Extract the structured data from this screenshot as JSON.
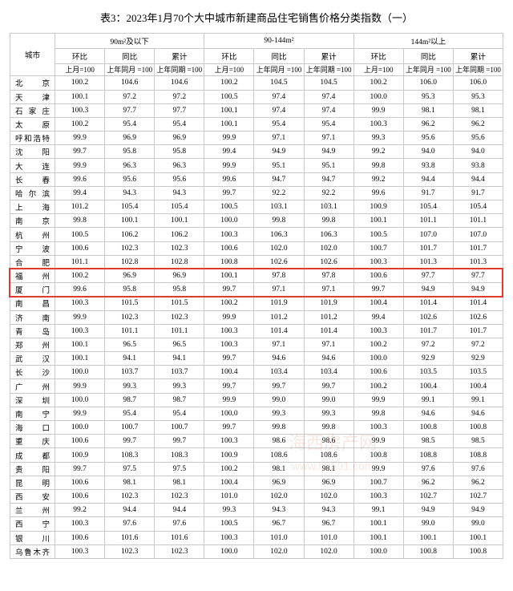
{
  "title": "表3：2023年1月70个大中城市新建商品住宅销售价格分类指数（一）",
  "header": {
    "city": "城市",
    "group1": "90m²及以下",
    "group2": "90-144m²",
    "group3": "144m²以上",
    "hb": "环比",
    "tb": "同比",
    "lj": "累计",
    "sub_hb": "上月=100",
    "sub_tb": "上年同月\n=100",
    "sub_lj": "上年同期\n=100"
  },
  "highlight_rows": [
    15,
    16
  ],
  "highlight_color": "#e23b2e",
  "watermark": {
    "line1": "海西房产网",
    "line2": "www.h0591.com"
  },
  "cities": [
    {
      "n": "北  京",
      "v": [
        "100.2",
        "104.6",
        "104.6",
        "100.2",
        "104.5",
        "104.5",
        "100.2",
        "106.0",
        "106.0"
      ]
    },
    {
      "n": "天  津",
      "v": [
        "100.1",
        "97.2",
        "97.2",
        "100.5",
        "97.4",
        "97.4",
        "100.0",
        "95.3",
        "95.3"
      ]
    },
    {
      "n": "石家庄",
      "v": [
        "100.3",
        "97.7",
        "97.7",
        "100.1",
        "97.4",
        "97.4",
        "99.9",
        "98.1",
        "98.1"
      ]
    },
    {
      "n": "太  原",
      "v": [
        "100.2",
        "95.4",
        "95.4",
        "100.1",
        "95.4",
        "95.4",
        "100.3",
        "96.2",
        "96.2"
      ]
    },
    {
      "n": "呼和浩特",
      "v": [
        "99.9",
        "96.9",
        "96.9",
        "99.9",
        "97.1",
        "97.1",
        "99.3",
        "95.6",
        "95.6"
      ]
    },
    {
      "n": "沈  阳",
      "v": [
        "99.7",
        "95.8",
        "95.8",
        "99.4",
        "94.9",
        "94.9",
        "99.2",
        "94.0",
        "94.0"
      ]
    },
    {
      "n": "大  连",
      "v": [
        "99.9",
        "96.3",
        "96.3",
        "99.9",
        "95.1",
        "95.1",
        "99.8",
        "93.8",
        "93.8"
      ]
    },
    {
      "n": "长  春",
      "v": [
        "99.6",
        "95.6",
        "95.6",
        "99.6",
        "94.7",
        "94.7",
        "99.2",
        "94.4",
        "94.4"
      ]
    },
    {
      "n": "哈尔滨",
      "v": [
        "99.4",
        "94.3",
        "94.3",
        "99.7",
        "92.2",
        "92.2",
        "99.6",
        "91.7",
        "91.7"
      ]
    },
    {
      "n": "上  海",
      "v": [
        "101.2",
        "105.4",
        "105.4",
        "100.5",
        "103.1",
        "103.1",
        "100.9",
        "105.4",
        "105.4"
      ]
    },
    {
      "n": "南  京",
      "v": [
        "99.8",
        "100.1",
        "100.1",
        "100.0",
        "99.8",
        "99.8",
        "100.1",
        "101.1",
        "101.1"
      ]
    },
    {
      "n": "杭  州",
      "v": [
        "100.5",
        "106.2",
        "106.2",
        "100.3",
        "106.3",
        "106.3",
        "100.5",
        "107.0",
        "107.0"
      ]
    },
    {
      "n": "宁  波",
      "v": [
        "100.6",
        "102.3",
        "102.3",
        "100.6",
        "102.0",
        "102.0",
        "100.7",
        "101.7",
        "101.7"
      ]
    },
    {
      "n": "合  肥",
      "v": [
        "101.1",
        "102.8",
        "102.8",
        "100.8",
        "102.6",
        "102.6",
        "100.3",
        "101.3",
        "101.3"
      ]
    },
    {
      "n": "福  州",
      "v": [
        "100.2",
        "96.9",
        "96.9",
        "100.1",
        "97.8",
        "97.8",
        "100.6",
        "97.7",
        "97.7"
      ]
    },
    {
      "n": "厦  门",
      "v": [
        "99.6",
        "95.8",
        "95.8",
        "99.7",
        "97.1",
        "97.1",
        "99.7",
        "94.9",
        "94.9"
      ]
    },
    {
      "n": "南  昌",
      "v": [
        "100.3",
        "101.5",
        "101.5",
        "100.2",
        "101.9",
        "101.9",
        "100.4",
        "101.4",
        "101.4"
      ]
    },
    {
      "n": "济  南",
      "v": [
        "99.9",
        "102.3",
        "102.3",
        "99.9",
        "101.2",
        "101.2",
        "99.4",
        "102.6",
        "102.6"
      ]
    },
    {
      "n": "青  岛",
      "v": [
        "100.3",
        "101.1",
        "101.1",
        "100.3",
        "101.4",
        "101.4",
        "100.3",
        "101.7",
        "101.7"
      ]
    },
    {
      "n": "郑  州",
      "v": [
        "100.1",
        "96.5",
        "96.5",
        "100.3",
        "97.1",
        "97.1",
        "100.2",
        "97.2",
        "97.2"
      ]
    },
    {
      "n": "武  汉",
      "v": [
        "100.1",
        "94.1",
        "94.1",
        "99.7",
        "94.6",
        "94.6",
        "100.0",
        "92.9",
        "92.9"
      ]
    },
    {
      "n": "长  沙",
      "v": [
        "100.0",
        "103.7",
        "103.7",
        "100.4",
        "103.4",
        "103.4",
        "100.6",
        "103.5",
        "103.5"
      ]
    },
    {
      "n": "广  州",
      "v": [
        "99.9",
        "99.3",
        "99.3",
        "99.7",
        "99.7",
        "99.7",
        "100.2",
        "100.4",
        "100.4"
      ]
    },
    {
      "n": "深  圳",
      "v": [
        "100.0",
        "98.7",
        "98.7",
        "99.9",
        "99.0",
        "99.0",
        "99.9",
        "99.1",
        "99.1"
      ]
    },
    {
      "n": "南  宁",
      "v": [
        "99.9",
        "95.4",
        "95.4",
        "100.0",
        "99.3",
        "99.3",
        "99.8",
        "94.6",
        "94.6"
      ]
    },
    {
      "n": "海  口",
      "v": [
        "100.0",
        "100.7",
        "100.7",
        "99.7",
        "99.8",
        "99.8",
        "100.3",
        "100.8",
        "100.8"
      ]
    },
    {
      "n": "重  庆",
      "v": [
        "100.6",
        "99.7",
        "99.7",
        "100.3",
        "98.6",
        "98.6",
        "99.9",
        "98.5",
        "98.5"
      ]
    },
    {
      "n": "成  都",
      "v": [
        "100.9",
        "108.3",
        "108.3",
        "100.9",
        "108.6",
        "108.6",
        "100.8",
        "108.8",
        "108.8"
      ]
    },
    {
      "n": "贵  阳",
      "v": [
        "99.7",
        "97.5",
        "97.5",
        "100.2",
        "98.1",
        "98.1",
        "99.9",
        "97.6",
        "97.6"
      ]
    },
    {
      "n": "昆  明",
      "v": [
        "100.6",
        "98.1",
        "98.1",
        "100.4",
        "96.9",
        "96.9",
        "100.7",
        "96.2",
        "96.2"
      ]
    },
    {
      "n": "西  安",
      "v": [
        "100.6",
        "102.3",
        "102.3",
        "101.0",
        "102.0",
        "102.0",
        "100.3",
        "102.7",
        "102.7"
      ]
    },
    {
      "n": "兰  州",
      "v": [
        "99.2",
        "94.4",
        "94.4",
        "99.3",
        "94.3",
        "94.3",
        "99.1",
        "94.9",
        "94.9"
      ]
    },
    {
      "n": "西  宁",
      "v": [
        "100.3",
        "97.6",
        "97.6",
        "100.5",
        "96.7",
        "96.7",
        "100.1",
        "99.0",
        "99.0"
      ]
    },
    {
      "n": "银  川",
      "v": [
        "100.6",
        "101.6",
        "101.6",
        "100.3",
        "101.0",
        "101.0",
        "100.1",
        "100.1",
        "100.1"
      ]
    },
    {
      "n": "乌鲁木齐",
      "v": [
        "100.3",
        "102.3",
        "102.3",
        "100.0",
        "102.0",
        "102.0",
        "100.0",
        "100.8",
        "100.8"
      ]
    }
  ]
}
